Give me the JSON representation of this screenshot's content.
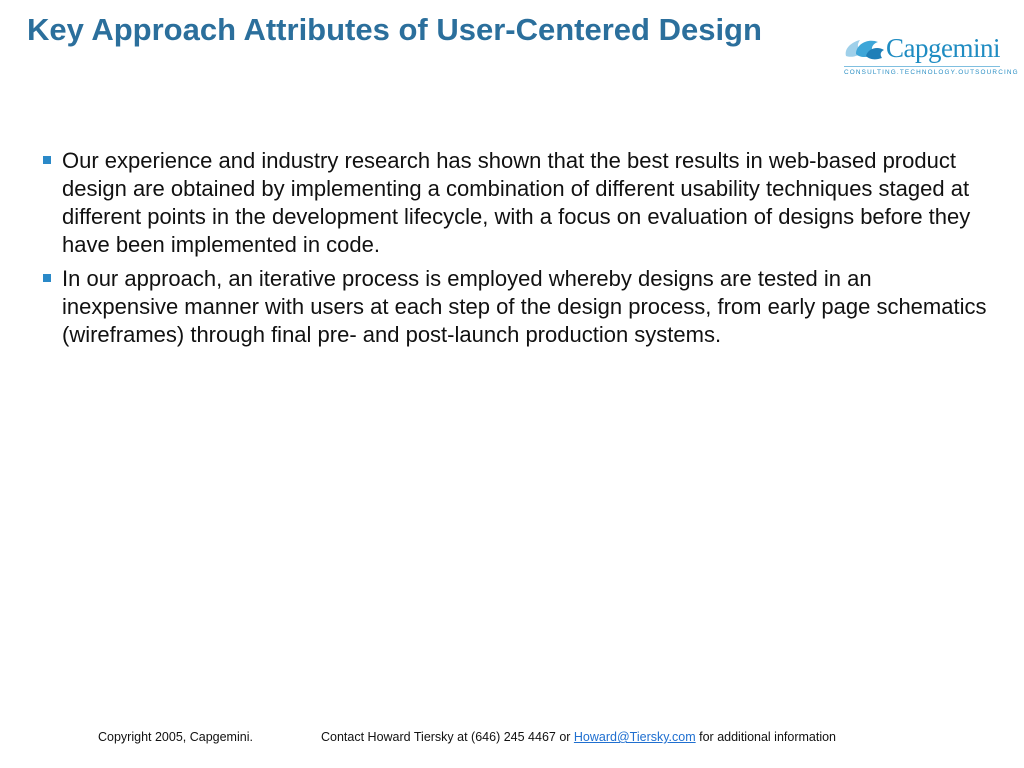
{
  "slide": {
    "title": "Key Approach Attributes of User-Centered Design",
    "bullets": [
      "Our experience and industry research has shown that the best results in web-based product design are obtained by implementing a combination of different usability techniques staged at different points in the development lifecycle, with a focus on evaluation of designs before they have been implemented in code.",
      "In our approach, an iterative process is employed whereby designs are tested in an inexpensive manner with users at each step of the design process, from early page schematics (wireframes) through final pre- and post-launch production systems."
    ]
  },
  "logo": {
    "name": "Capgemini",
    "tagline": "CONSULTING.TECHNOLOGY.OUTSOURCING",
    "icon": "spade-icon",
    "color": "#1f8cc2"
  },
  "footer": {
    "copyright": "Copyright 2005, Capgemini.",
    "contact_prefix": "Contact Howard Tiersky at (646) 245 4467 or ",
    "email": "Howard@Tiersky.com",
    "contact_suffix": " for additional information",
    "link_color": "#1f6fd0"
  },
  "colors": {
    "title": "#2b6f9c",
    "bullet_marker": "#2a89c8",
    "body_text": "#111111"
  }
}
